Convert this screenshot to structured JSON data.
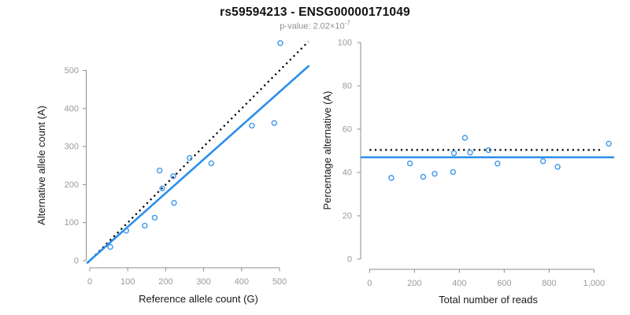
{
  "header": {
    "title": "rs59594213 - ENSG00000171049",
    "subtitle_main": "p-value: 2.02×10",
    "subtitle_exponent": "-7"
  },
  "colors": {
    "fit_line": "#2b8fea",
    "point": "#3d98ec",
    "reference_line": "#000000",
    "axis": "#8c8c8c",
    "tick_label": "#9a9a9a",
    "axis_title": "#1a1a1a",
    "title": "#111111",
    "subtitle": "#8f8f8f"
  },
  "chart_data": [
    {
      "type": "scatter",
      "title": "",
      "xlabel": "Reference allele count (G)",
      "ylabel": "Alternative allele count (A)",
      "xlim": [
        0,
        575
      ],
      "ylim": [
        0,
        580
      ],
      "grid": false,
      "legend": null,
      "xticks": [
        0,
        100,
        200,
        300,
        400,
        500
      ],
      "xtick_labels": [
        "0",
        "100",
        "200",
        "300",
        "400",
        "500"
      ],
      "yticks": [
        0,
        100,
        200,
        300,
        400,
        500
      ],
      "ytick_labels": [
        "0",
        "100",
        "200",
        "300",
        "400",
        "500"
      ],
      "points": [
        [
          54,
          36
        ],
        [
          96,
          79
        ],
        [
          145,
          92
        ],
        [
          171,
          113
        ],
        [
          184,
          237
        ],
        [
          191,
          190
        ],
        [
          220,
          222
        ],
        [
          222,
          152
        ],
        [
          263,
          270
        ],
        [
          320,
          256
        ],
        [
          427,
          355
        ],
        [
          486,
          362
        ],
        [
          502,
          572
        ]
      ],
      "lines": [
        {
          "name": "expected-identity",
          "style": "dotted",
          "color_key": "reference_line",
          "from": [
            -5,
            -5
          ],
          "to": [
            576,
            576
          ]
        },
        {
          "name": "fitted-ratio",
          "style": "solid",
          "color_key": "fit_line",
          "from": [
            -8,
            -7
          ],
          "to": [
            578,
            513
          ]
        }
      ]
    },
    {
      "type": "scatter",
      "title": "",
      "xlabel": "Total number of reads",
      "ylabel": "Percentage alternative (A)",
      "xlim": [
        0,
        1090
      ],
      "ylim": [
        0,
        100
      ],
      "grid": false,
      "legend": null,
      "xticks": [
        0,
        200,
        400,
        600,
        800,
        1000
      ],
      "xtick_labels": [
        "0",
        "200",
        "400",
        "600",
        "800",
        "1,000"
      ],
      "yticks": [
        0,
        20,
        40,
        60,
        80,
        100
      ],
      "ytick_labels": [
        "0",
        "20",
        "40",
        "60",
        "80",
        "100"
      ],
      "points": [
        [
          97,
          37.5
        ],
        [
          180,
          44.2
        ],
        [
          239,
          38
        ],
        [
          290,
          39.4
        ],
        [
          372,
          40.2
        ],
        [
          376,
          48.9
        ],
        [
          425,
          56
        ],
        [
          448,
          49.2
        ],
        [
          530,
          50.3
        ],
        [
          570,
          44.1
        ],
        [
          773,
          45.2
        ],
        [
          838,
          42.6
        ],
        [
          1066,
          53.3
        ]
      ],
      "lines": [
        {
          "name": "expected-percentage",
          "style": "dotted",
          "color_key": "reference_line",
          "y": 50.4,
          "x_from": 0,
          "x_to": 1041
        },
        {
          "name": "fitted-percentage",
          "style": "solid",
          "color_key": "fit_line",
          "y": 47,
          "x_from": -40,
          "x_to": 1090
        }
      ]
    }
  ]
}
